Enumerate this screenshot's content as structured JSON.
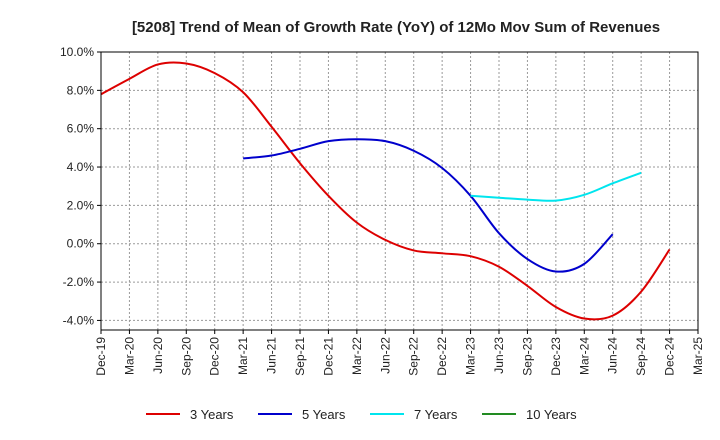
{
  "chart_data": {
    "type": "line",
    "title": "[5208]  Trend of Mean of Growth Rate (YoY) of 12Mo Mov Sum of Revenues",
    "xlabel": "",
    "ylabel": "",
    "ylim": [
      -4.5,
      10.0
    ],
    "yticks": [
      10.0,
      8.0,
      6.0,
      4.0,
      2.0,
      0.0,
      -2.0,
      -4.0
    ],
    "ytick_labels": [
      "10.0%",
      "8.0%",
      "6.0%",
      "4.0%",
      "2.0%",
      "0.0%",
      "-2.0%",
      "-4.0%"
    ],
    "x_categories": [
      "Dec-19",
      "Mar-20",
      "Jun-20",
      "Sep-20",
      "Dec-20",
      "Mar-21",
      "Jun-21",
      "Sep-21",
      "Dec-21",
      "Mar-22",
      "Jun-22",
      "Sep-22",
      "Dec-22",
      "Mar-23",
      "Jun-23",
      "Sep-23",
      "Dec-23",
      "Mar-24",
      "Jun-24",
      "Sep-24",
      "Dec-24",
      "Mar-25"
    ],
    "grid": true,
    "legend_position": "bottom",
    "series": [
      {
        "name": "3 Years",
        "color": "#dd0000",
        "start_index": 0,
        "values": [
          7.8,
          8.6,
          9.35,
          9.4,
          8.9,
          7.9,
          6.1,
          4.2,
          2.5,
          1.1,
          0.2,
          -0.35,
          -0.5,
          -0.65,
          -1.2,
          -2.2,
          -3.3,
          -3.9,
          -3.75,
          -2.5,
          -0.3
        ]
      },
      {
        "name": "5 Years",
        "color": "#0000cc",
        "start_index": 5,
        "values": [
          4.45,
          4.6,
          4.95,
          5.35,
          5.45,
          5.35,
          4.85,
          3.95,
          2.5,
          0.55,
          -0.8,
          -1.45,
          -1.05,
          0.5
        ]
      },
      {
        "name": "7 Years",
        "color": "#00e5ee",
        "start_index": 13,
        "values": [
          2.5,
          2.4,
          2.3,
          2.25,
          2.55,
          3.15,
          3.7
        ]
      },
      {
        "name": "10 Years",
        "color": "#228B22",
        "start_index": 0,
        "values": []
      }
    ]
  }
}
